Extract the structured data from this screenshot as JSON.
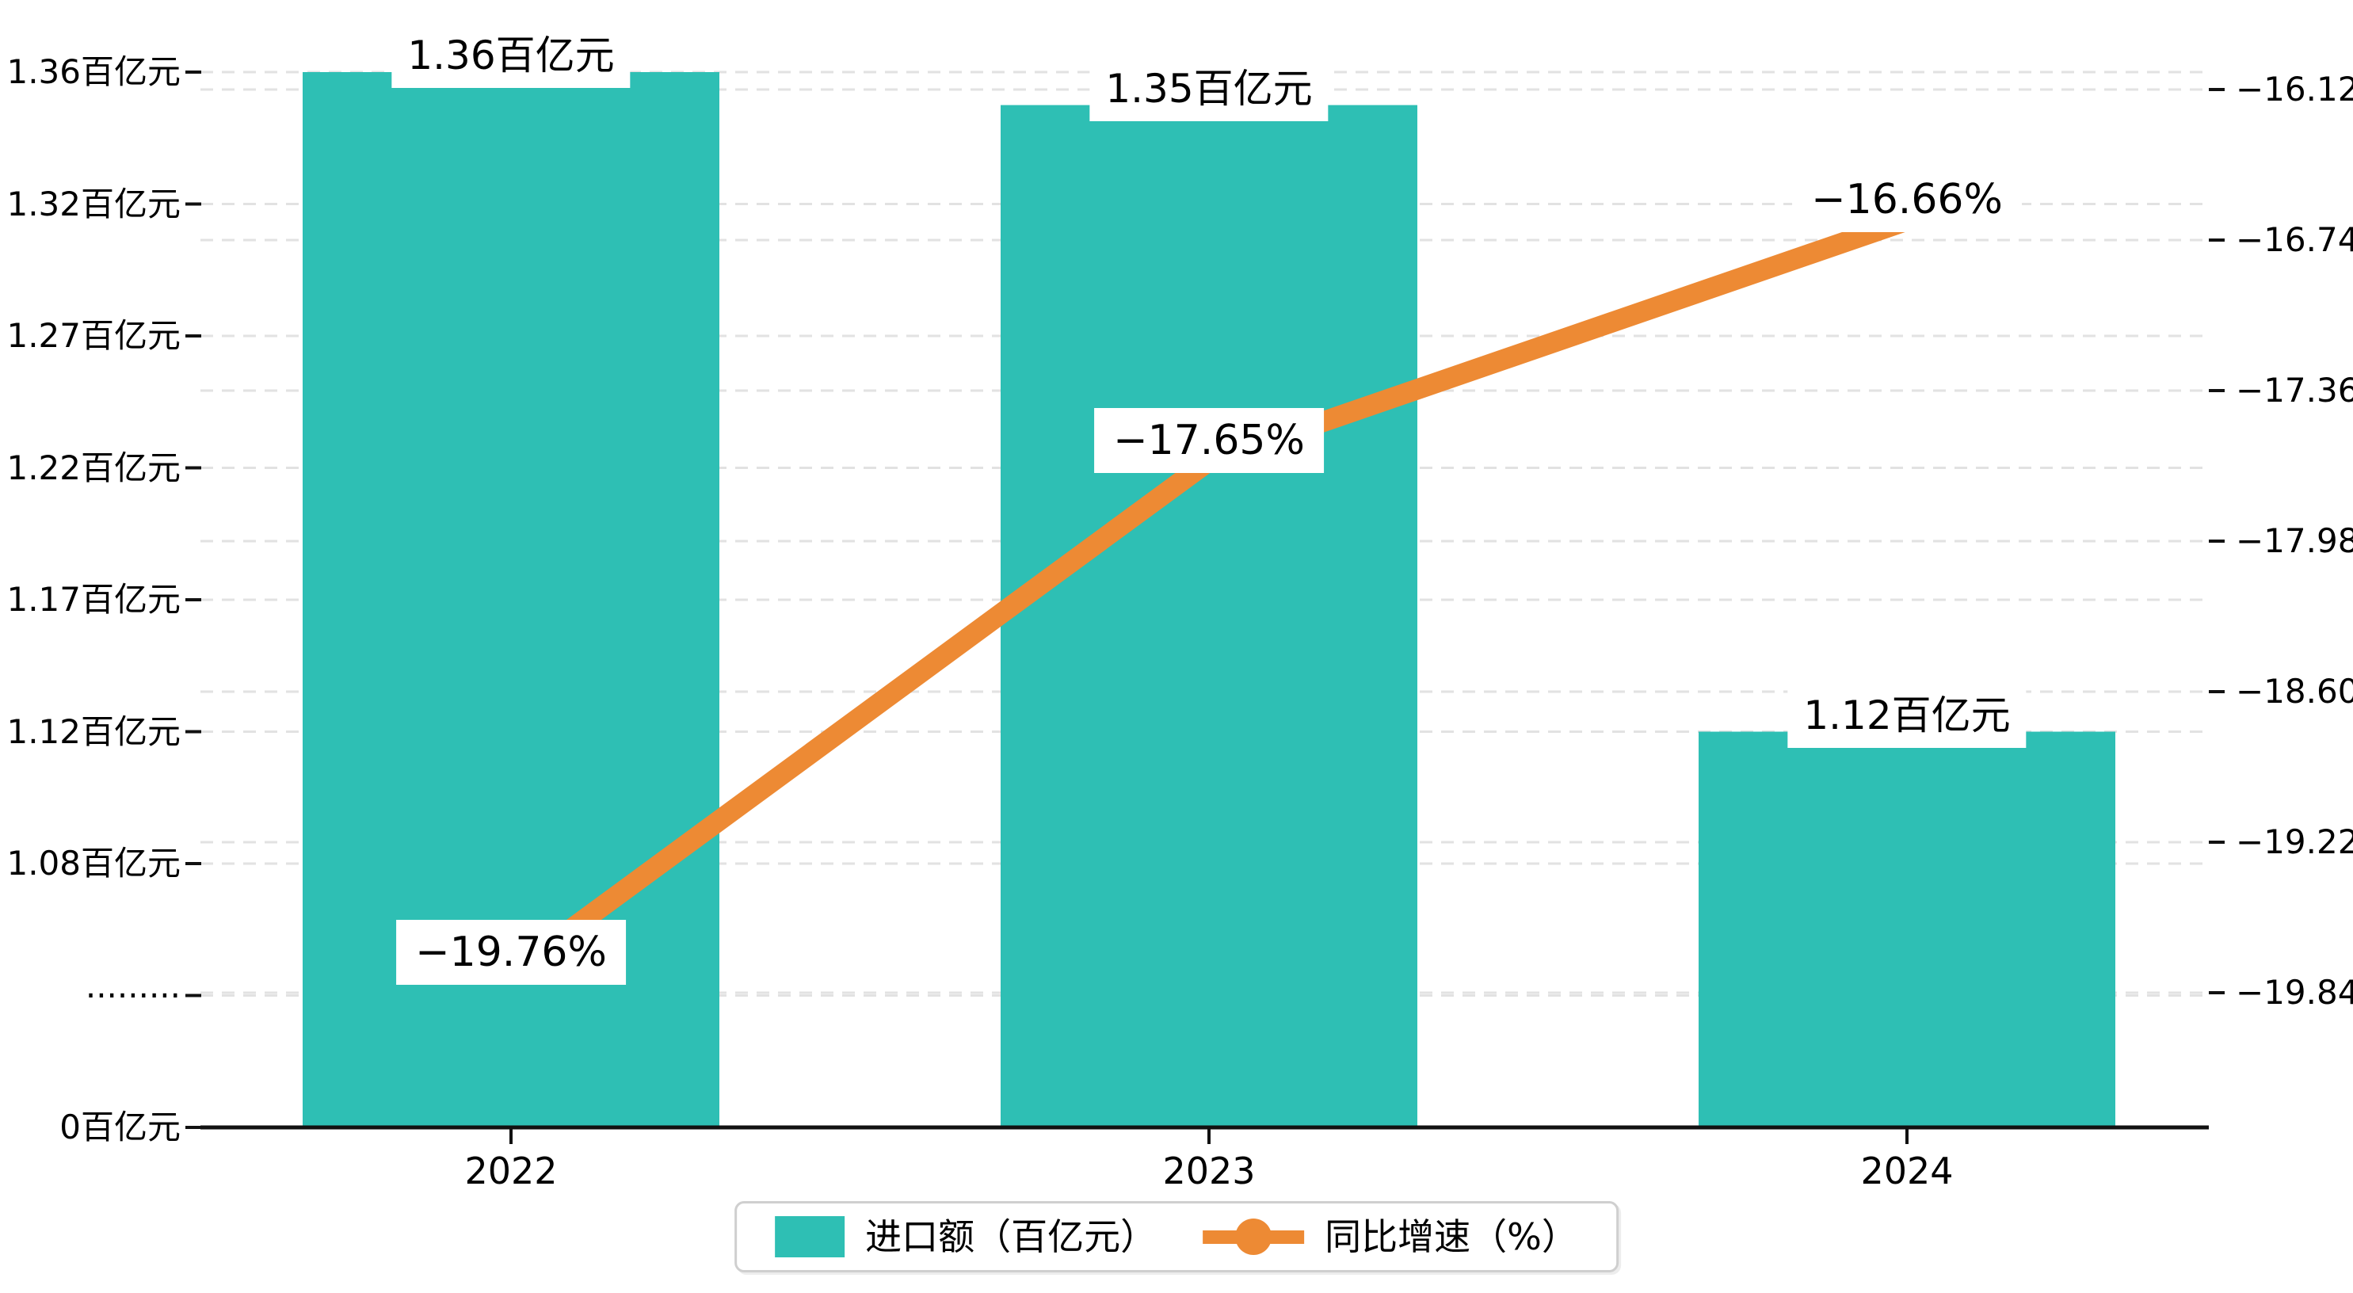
{
  "chart_data": {
    "type": "combo",
    "title": "",
    "categories": [
      "2022",
      "2023",
      "2024"
    ],
    "series": [
      {
        "name": "进口额（百亿元）",
        "type": "bar",
        "color": "#2EBFB4",
        "values": [
          1.36,
          1.35,
          1.12
        ],
        "point_labels": [
          "1.36百亿元",
          "1.35百亿元",
          "1.12百亿元"
        ]
      },
      {
        "name": "同比增速（%）",
        "type": "line",
        "color": "#ED8A34",
        "values": [
          -19.76,
          -17.65,
          -16.66
        ],
        "point_labels": [
          "−19.76%",
          "−17.65%",
          "−16.66%"
        ]
      }
    ],
    "left_axis": {
      "unit": "百亿元",
      "axis_break": true,
      "ticks": [
        {
          "label": "0百亿元",
          "value": 0
        },
        {
          "label": "·········",
          "value": null
        },
        {
          "label": "1.08百亿元",
          "value": 1.08
        },
        {
          "label": "1.12百亿元",
          "value": 1.12
        },
        {
          "label": "1.17百亿元",
          "value": 1.17
        },
        {
          "label": "1.22百亿元",
          "value": 1.22
        },
        {
          "label": "1.27百亿元",
          "value": 1.27
        },
        {
          "label": "1.32百亿元",
          "value": 1.32
        },
        {
          "label": "1.36百亿元",
          "value": 1.36
        }
      ]
    },
    "right_axis": {
      "unit": "%",
      "ticks": [
        {
          "label": "−16.12",
          "value": -16.12
        },
        {
          "label": "−16.74",
          "value": -16.74
        },
        {
          "label": "−17.36",
          "value": -17.36
        },
        {
          "label": "−17.98",
          "value": -17.98
        },
        {
          "label": "−18.60",
          "value": -18.6
        },
        {
          "label": "−19.22",
          "value": -19.22
        },
        {
          "label": "−19.84",
          "value": -19.84
        }
      ]
    },
    "legend": {
      "position": "bottom-center",
      "items": [
        "进口额（百亿元）",
        "同比增速（%）"
      ]
    },
    "grid": {
      "visible": true,
      "style": "dashed"
    },
    "colors": {
      "bar": "#2EBFB4",
      "line": "#ED8A34",
      "grid": "#E2E2E2",
      "axis": "#111111",
      "background": "#FFFFFF",
      "label_background": "#FFFFFF",
      "text": "#000000"
    }
  }
}
